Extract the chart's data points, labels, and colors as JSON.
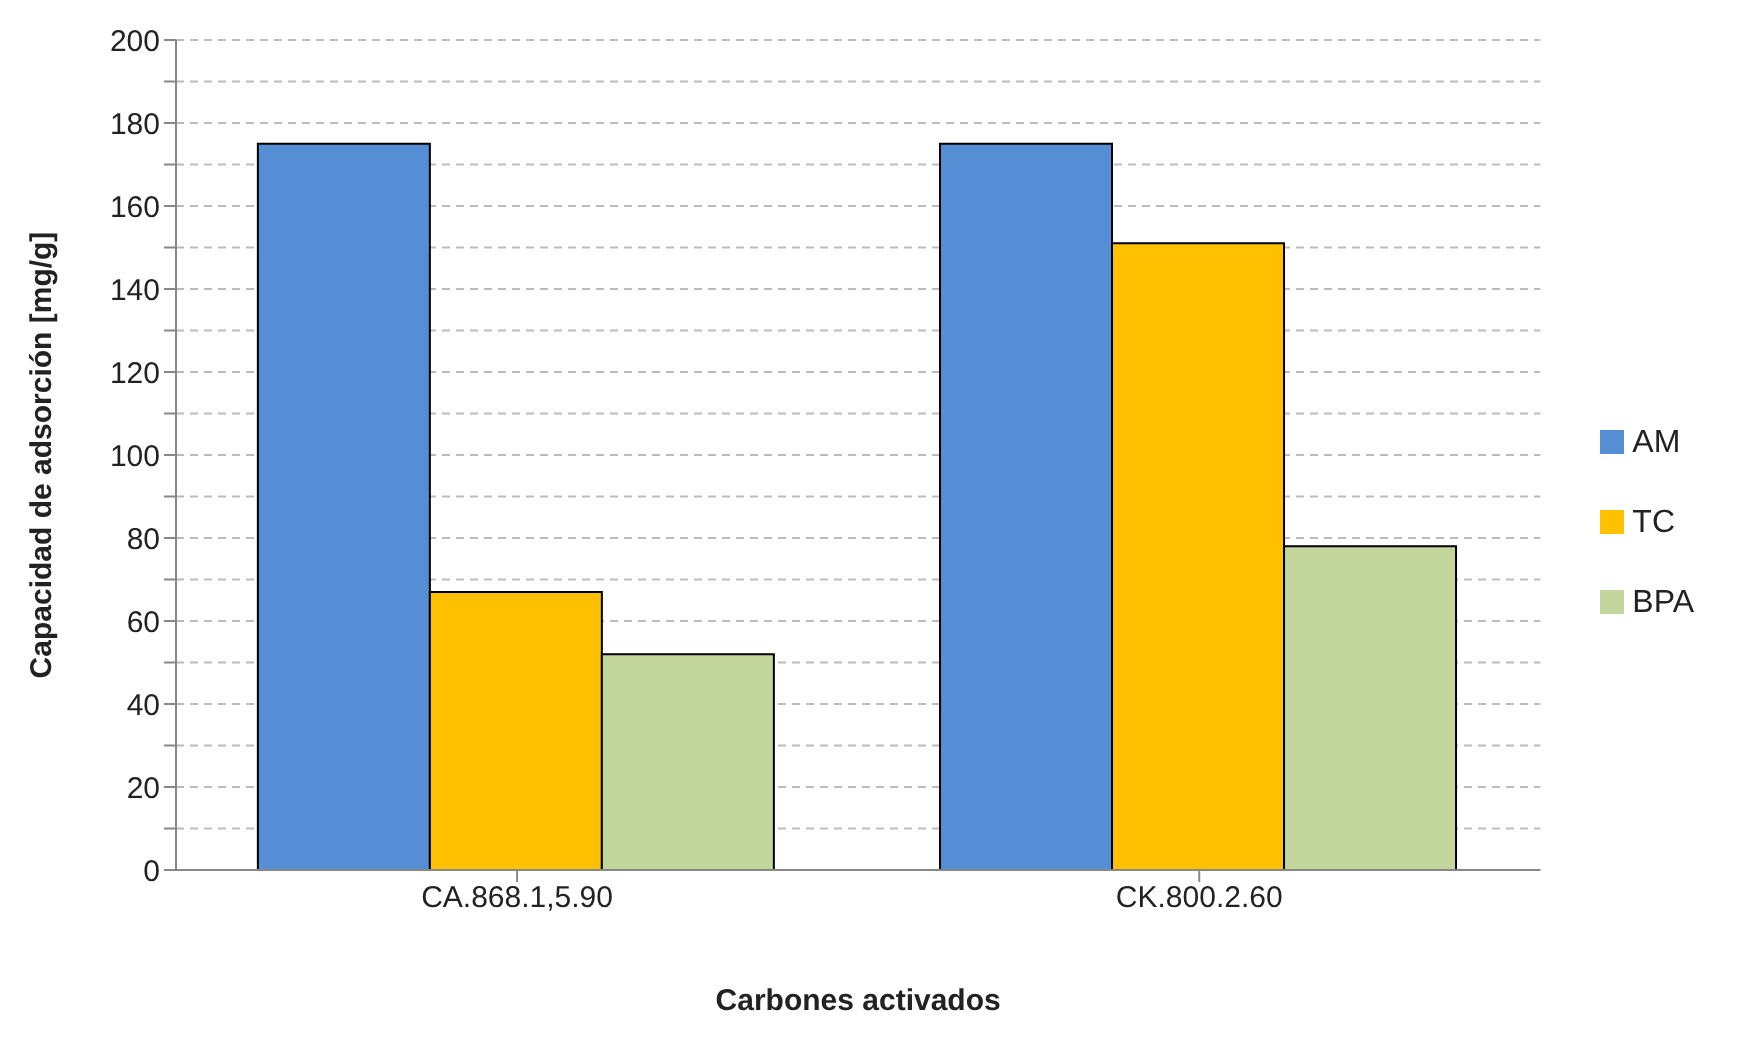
{
  "chart_data": {
    "type": "bar",
    "xlabel": "Carbones activados",
    "ylabel": "Capacidad de adsorción [mg/g]",
    "categories": [
      "CA.868.1,5.90",
      "CK.800.2.60"
    ],
    "series": [
      {
        "name": "AM",
        "color": "#558ed5",
        "values": [
          175,
          175
        ]
      },
      {
        "name": "TC",
        "color": "#ffc000",
        "values": [
          67,
          151
        ]
      },
      {
        "name": "BPA",
        "color": "#c3d69b",
        "values": [
          52,
          78
        ]
      }
    ],
    "ylim": [
      0,
      200
    ],
    "yticks": [
      0,
      {
        "value": 10,
        "label": null
      },
      20,
      {
        "value": 30,
        "label": null
      },
      40,
      {
        "value": 50,
        "label": null
      },
      60,
      {
        "value": 70,
        "label": null
      },
      80,
      {
        "value": 90,
        "label": null
      },
      100,
      {
        "value": 110,
        "label": null
      },
      120,
      {
        "value": 130,
        "label": null
      },
      140,
      {
        "value": 150,
        "label": null
      },
      160,
      {
        "value": 170,
        "label": null
      },
      180,
      {
        "value": 190,
        "label": null
      },
      200
    ],
    "grid": "y",
    "legend": "right"
  }
}
